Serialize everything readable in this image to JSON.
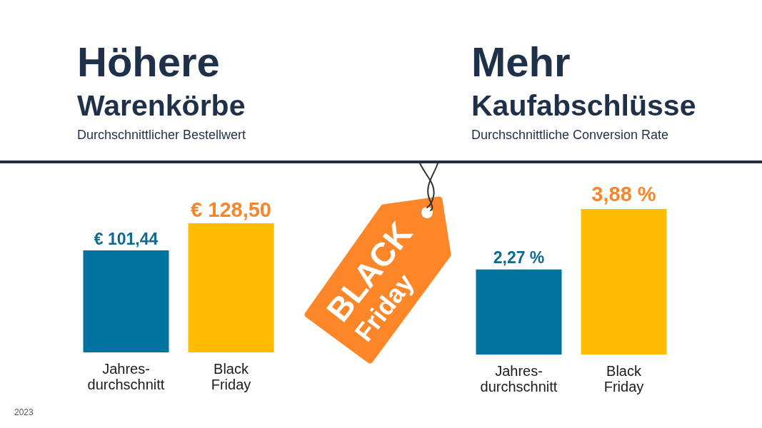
{
  "chart_data": [
    {
      "type": "bar",
      "title": "Höhere\nWarenkörbe",
      "subtitle": "Durchschnittlicher Bestellwert",
      "categories": [
        "Jahres-\ndurchschnitt",
        "Black\nFriday"
      ],
      "values": [
        101.44,
        128.5
      ],
      "value_labels": [
        "€ 101,44",
        "€ 128,50"
      ],
      "colors": [
        "#00739f",
        "#ffbc00"
      ],
      "annotations": [
        "BLACK\nFriday",
        "2023"
      ]
    },
    {
      "type": "bar",
      "title": "Mehr\nKaufabschlüsse",
      "subtitle": "Durchschnittliche Conversion Rate",
      "categories": [
        "Jahres-\ndurchschnitt",
        "Black\nFriday"
      ],
      "values": [
        2.27,
        3.88
      ],
      "value_labels": [
        "2,27 %",
        "3,88 %"
      ],
      "colors": [
        "#00739f",
        "#ffbc00"
      ]
    }
  ]
}
